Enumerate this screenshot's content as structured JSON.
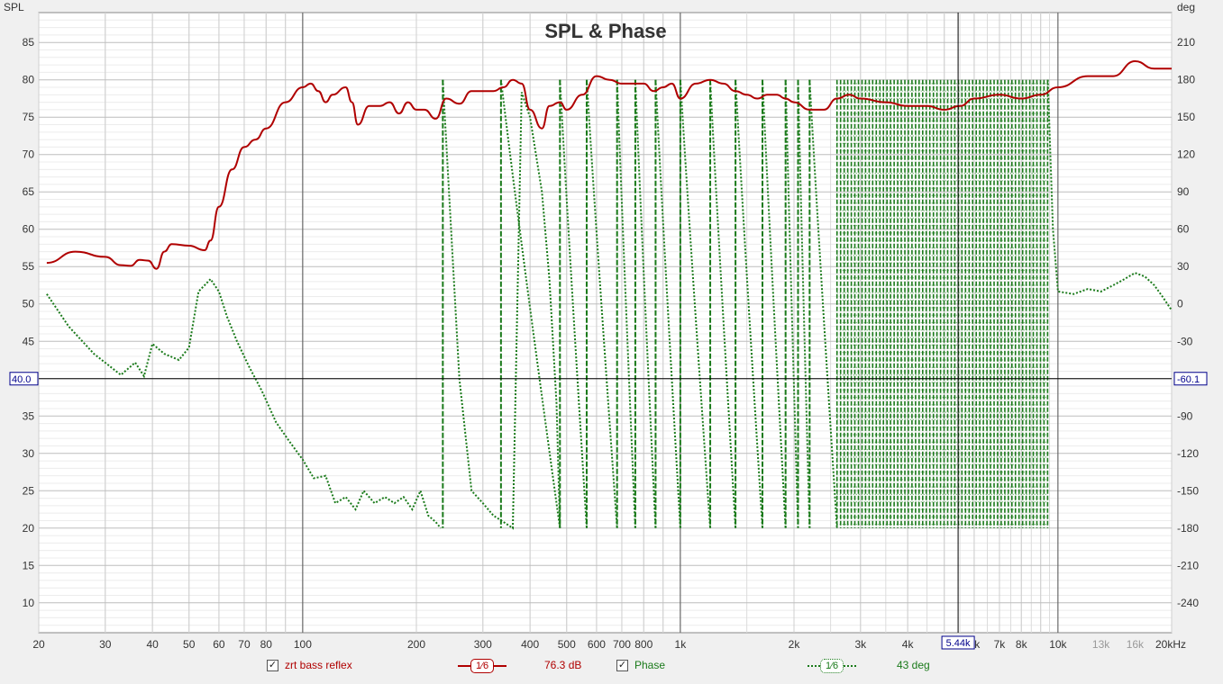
{
  "chart_data": {
    "type": "line",
    "title": "SPL & Phase",
    "left_axis": {
      "label": "SPL",
      "range": [
        6,
        89
      ],
      "ticks": [
        10,
        15,
        20,
        25,
        30,
        35,
        40,
        45,
        50,
        55,
        60,
        65,
        70,
        75,
        80,
        85
      ]
    },
    "right_axis": {
      "label": "deg",
      "ticks": [
        -240,
        -210,
        -180,
        -150,
        -120,
        -90,
        -60,
        -30,
        0,
        30,
        60,
        90,
        120,
        150,
        180,
        210
      ]
    },
    "x_axis": {
      "unit": "Hz",
      "scale": "log",
      "range": [
        20,
        20000
      ],
      "tick_labels": [
        {
          "v": 20,
          "t": "20"
        },
        {
          "v": 30,
          "t": "30"
        },
        {
          "v": 40,
          "t": "40"
        },
        {
          "v": 50,
          "t": "50"
        },
        {
          "v": 60,
          "t": "60"
        },
        {
          "v": 70,
          "t": "70"
        },
        {
          "v": 80,
          "t": "80"
        },
        {
          "v": 100,
          "t": "100"
        },
        {
          "v": 200,
          "t": "200"
        },
        {
          "v": 300,
          "t": "300"
        },
        {
          "v": 400,
          "t": "400"
        },
        {
          "v": 500,
          "t": "500"
        },
        {
          "v": 600,
          "t": "600"
        },
        {
          "v": 700,
          "t": "700"
        },
        {
          "v": 800,
          "t": "800"
        },
        {
          "v": 1000,
          "t": "1k"
        },
        {
          "v": 2000,
          "t": "2k"
        },
        {
          "v": 3000,
          "t": "3k"
        },
        {
          "v": 4000,
          "t": "4k"
        },
        {
          "v": 6000,
          "t": "6k"
        },
        {
          "v": 7000,
          "t": "7k"
        },
        {
          "v": 8000,
          "t": "8k"
        },
        {
          "v": 10000,
          "t": "10k"
        },
        {
          "v": 13000,
          "t": "13k",
          "light": true
        },
        {
          "v": 16000,
          "t": "16k",
          "light": true
        },
        {
          "v": 20000,
          "t": "20kHz"
        }
      ]
    },
    "cursor": {
      "spl": "40.0",
      "phase": "-60.1",
      "freq": "5.44k",
      "spl_value": 40,
      "freq_value": 5440
    },
    "grid": true,
    "series": [
      {
        "name": "zrt bass reflex",
        "axis": "left",
        "color": "#b00000",
        "x": [
          21,
          25,
          30,
          33,
          35,
          37,
          39,
          41,
          43,
          45,
          50,
          55,
          57,
          60,
          65,
          70,
          75,
          80,
          90,
          100,
          105,
          110,
          115,
          120,
          130,
          135,
          140,
          150,
          160,
          170,
          180,
          190,
          200,
          210,
          225,
          240,
          260,
          280,
          300,
          320,
          340,
          360,
          380,
          400,
          430,
          450,
          480,
          500,
          550,
          600,
          650,
          700,
          750,
          800,
          850,
          900,
          950,
          1000,
          1100,
          1200,
          1300,
          1400,
          1500,
          1600,
          1700,
          1800,
          1900,
          2000,
          2200,
          2400,
          2600,
          2800,
          3000,
          3500,
          4000,
          4500,
          5000,
          5500,
          6000,
          7000,
          8000,
          9000,
          10000,
          12000,
          14000,
          16000,
          18000,
          20000
        ],
        "y": [
          55.5,
          57,
          56.3,
          55.2,
          55.1,
          55.9,
          55.8,
          54.7,
          57,
          58,
          57.8,
          57.2,
          58.5,
          63,
          68,
          71,
          72,
          73.5,
          77,
          79,
          79.5,
          78.5,
          77,
          78,
          79,
          77,
          74,
          76.5,
          76.5,
          77,
          75.5,
          77,
          76,
          76,
          74.8,
          77.5,
          76.8,
          78.5,
          78.5,
          78.5,
          79,
          80,
          79.5,
          76,
          73.5,
          76.5,
          77,
          76,
          78,
          80.5,
          80,
          79.5,
          79.5,
          79.5,
          78.5,
          79,
          79.5,
          77.5,
          79.5,
          80,
          79.5,
          78.5,
          78,
          77.5,
          78,
          78,
          77.5,
          77,
          76,
          76,
          77.5,
          78,
          77.5,
          77,
          76.5,
          76.5,
          76,
          76.5,
          77.5,
          78,
          77.5,
          78,
          79,
          80.5,
          80.5,
          82.5,
          81.5,
          81.5
        ]
      },
      {
        "name": "Phase",
        "axis": "right",
        "color": "#1a7a1a",
        "low_x": [
          21,
          24,
          28,
          33,
          36,
          38,
          40,
          43,
          47,
          50,
          53,
          57,
          60,
          63,
          67,
          72,
          78,
          85,
          92,
          100,
          107,
          115,
          122,
          130,
          138,
          145,
          155,
          165,
          175,
          185,
          195,
          205,
          215,
          225,
          232
        ],
        "low_y": [
          8,
          -18,
          -40,
          -57,
          -47,
          -58,
          -32,
          -40,
          -45,
          -35,
          10,
          20,
          10,
          -10,
          -30,
          -50,
          -70,
          -95,
          -110,
          -125,
          -140,
          -138,
          -160,
          -155,
          -165,
          -150,
          -160,
          -155,
          -160,
          -155,
          -165,
          -150,
          -170,
          -175,
          -180
        ],
        "mid_x": [
          235,
          260,
          280,
          300,
          320,
          340,
          360,
          380,
          400,
          430,
          450,
          470,
          480
        ],
        "mid_y": [
          180,
          -60,
          -150,
          -160,
          -170,
          -175,
          -180,
          170,
          150,
          90,
          20,
          -80,
          -180
        ],
        "wraps_x": [
          235,
          335,
          480,
          565,
          680,
          760,
          860,
          1000,
          1200,
          1400,
          1650,
          1900,
          2050,
          2200
        ],
        "dense_range": [
          2600,
          9400
        ],
        "dense_step": 1.022,
        "high_x": [
          9400,
          9700,
          10000,
          11000,
          12000,
          13000,
          14000,
          15000,
          16000,
          17000,
          18000,
          19000,
          20000
        ],
        "high_y": [
          180,
          60,
          10,
          8,
          12,
          10,
          15,
          20,
          25,
          22,
          15,
          5,
          -5
        ]
      }
    ],
    "legend": {
      "spl_name": "zrt bass reflex",
      "spl_smooth": "1⁄6",
      "spl_value": "76.3 dB",
      "phase_name": "Phase",
      "phase_smooth": "1⁄6",
      "phase_value": "43 deg",
      "checked": "✓"
    }
  }
}
